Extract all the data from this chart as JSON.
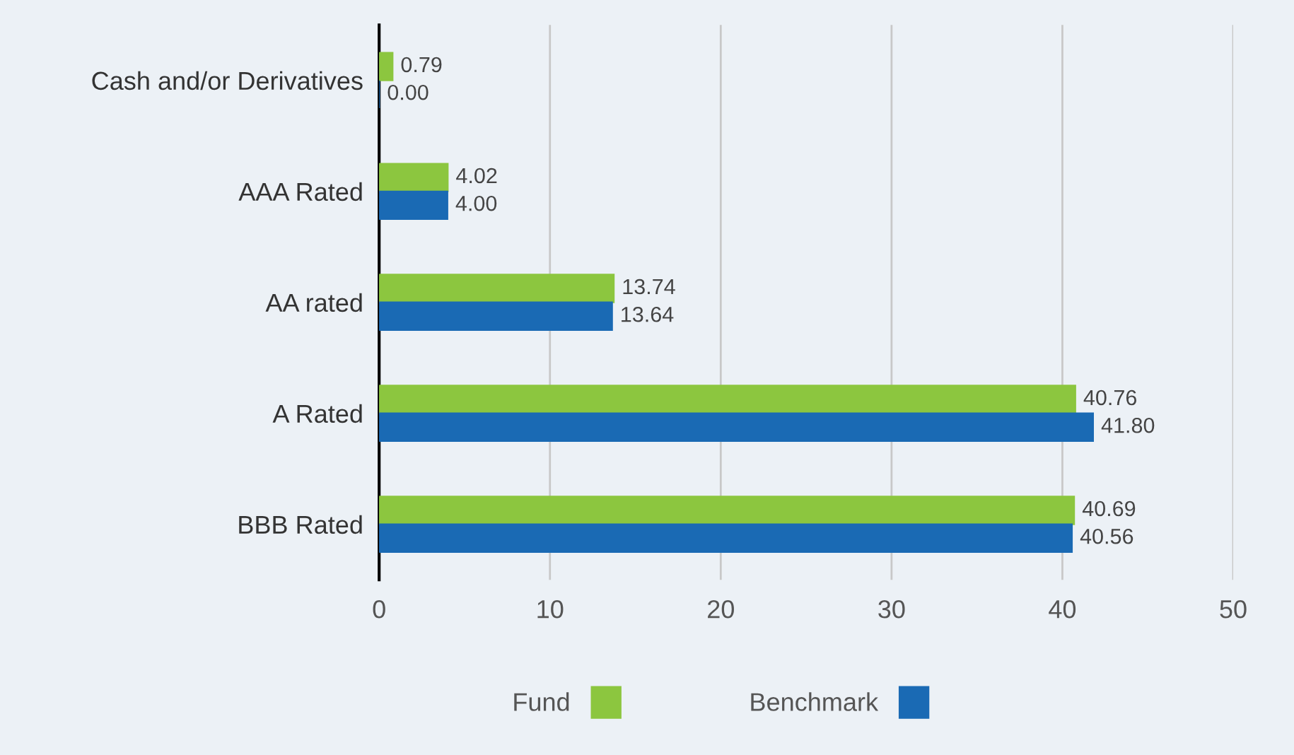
{
  "chart_data": {
    "type": "bar",
    "orientation": "horizontal",
    "categories": [
      "Cash and/or Derivatives",
      "AAA Rated",
      "AA rated",
      "A Rated",
      "BBB Rated"
    ],
    "series": [
      {
        "name": "Fund",
        "color": "#8cc63f",
        "values": [
          0.79,
          4.02,
          13.74,
          40.76,
          40.69
        ],
        "value_labels": [
          "0.79",
          "4.02",
          "13.74",
          "40.76",
          "40.69"
        ]
      },
      {
        "name": "Benchmark",
        "color": "#1a6ab4",
        "values": [
          0.0,
          4.0,
          13.64,
          41.8,
          40.56
        ],
        "value_labels": [
          "0.00",
          "4.00",
          "13.64",
          "41.80",
          "40.56"
        ]
      }
    ],
    "xlim": [
      0,
      50
    ],
    "xticks": [
      0,
      10,
      20,
      30,
      40,
      50
    ],
    "grid": "x",
    "legend": "bottom"
  }
}
